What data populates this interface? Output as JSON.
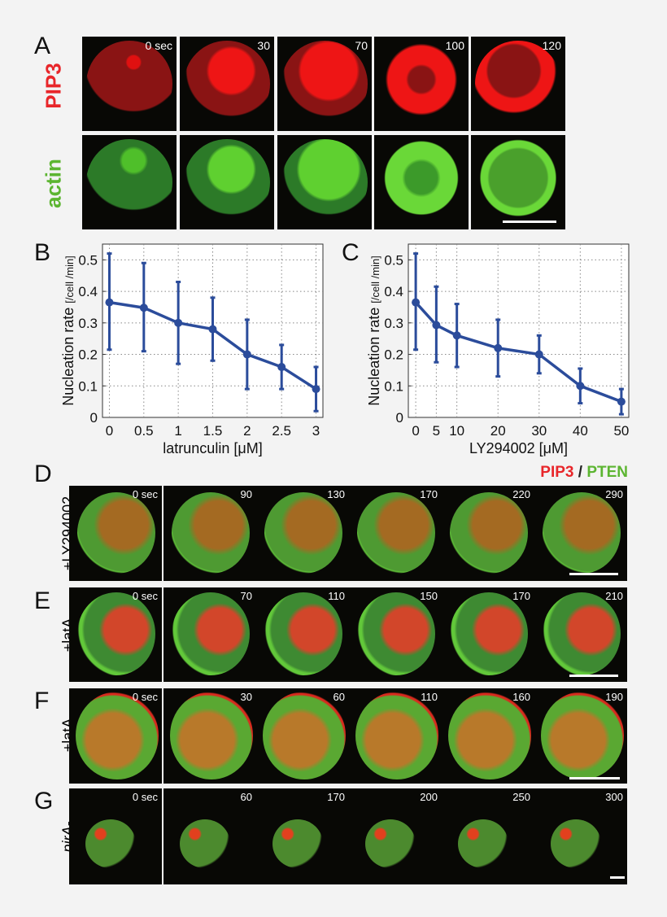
{
  "panels": {
    "A": {
      "letter": "A",
      "row_labels": [
        "PIP3",
        "actin"
      ],
      "times": [
        "0 sec",
        "30",
        "70",
        "100",
        "120"
      ]
    },
    "B": {
      "letter": "B"
    },
    "C": {
      "letter": "C"
    },
    "D": {
      "letter": "D",
      "row_label": "+LY294002",
      "times": [
        "0 sec",
        "90",
        "130",
        "170",
        "220",
        "290"
      ]
    },
    "E": {
      "letter": "E",
      "row_label": "+latA",
      "times": [
        "0 sec",
        "70",
        "110",
        "150",
        "170",
        "210"
      ]
    },
    "F": {
      "letter": "F",
      "row_label": "+latA",
      "times": [
        "0 sec",
        "30",
        "60",
        "110",
        "160",
        "190"
      ]
    },
    "G": {
      "letter": "G",
      "row_label": "pirA-",
      "times": [
        "0 sec",
        "60",
        "170",
        "200",
        "250",
        "300"
      ]
    }
  },
  "legend_DG": {
    "pip3": "PIP3",
    "sep": " / ",
    "pten": "PTEN"
  },
  "colors": {
    "pip3": "#e8262a",
    "actin": "#5cb531",
    "pten": "#5cb531",
    "series": "#2b4c9b"
  },
  "chart_data": [
    {
      "type": "line",
      "panel": "B",
      "x": [
        0,
        0.5,
        1,
        1.5,
        2,
        2.5,
        3
      ],
      "x_tick_labels": [
        "0",
        "0.5",
        "1",
        "1.5",
        "2",
        "2.5",
        "3"
      ],
      "y": [
        0.365,
        0.348,
        0.3,
        0.28,
        0.2,
        0.16,
        0.09
      ],
      "y_err_low": [
        0.215,
        0.21,
        0.17,
        0.18,
        0.09,
        0.09,
        0.02
      ],
      "y_err_high": [
        0.52,
        0.49,
        0.43,
        0.38,
        0.31,
        0.23,
        0.16
      ],
      "xlabel": "latrunculin [μM]",
      "ylabel": "Nucleation rate",
      "ylabel_unit": "[/cell /min]",
      "ylim": [
        0,
        0.55
      ],
      "xlim": [
        -0.1,
        3.1
      ],
      "y_ticks": [
        "0",
        "0.1",
        "0.2",
        "0.3",
        "0.4",
        "0.5"
      ],
      "grid": true
    },
    {
      "type": "line",
      "panel": "C",
      "x": [
        0,
        5,
        10,
        20,
        30,
        40,
        50
      ],
      "x_tick_labels": [
        "0",
        "5",
        "10",
        "20",
        "30",
        "40",
        "50"
      ],
      "y": [
        0.365,
        0.293,
        0.26,
        0.22,
        0.2,
        0.1,
        0.05
      ],
      "y_err_low": [
        0.215,
        0.175,
        0.16,
        0.13,
        0.14,
        0.045,
        0.01
      ],
      "y_err_high": [
        0.52,
        0.415,
        0.36,
        0.31,
        0.26,
        0.155,
        0.09
      ],
      "xlabel": "LY294002 [μM]",
      "ylabel": "Nucleation rate",
      "ylabel_unit": "[/cell /min]",
      "ylim": [
        0,
        0.55
      ],
      "xlim": [
        -1.8,
        51.8
      ],
      "y_ticks": [
        "0",
        "0.1",
        "0.2",
        "0.3",
        "0.4",
        "0.5"
      ],
      "grid": true
    }
  ]
}
